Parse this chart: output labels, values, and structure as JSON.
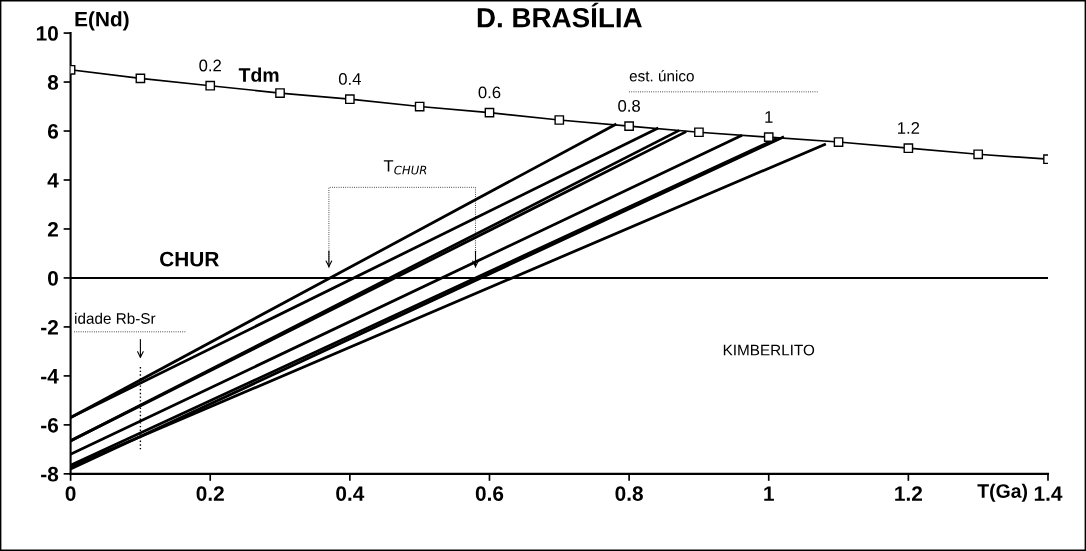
{
  "chart_data": {
    "type": "line",
    "title": "D. BRASÍLIA",
    "xlabel": "T(Ga)",
    "ylabel": "E(Nd)",
    "xlim": [
      0,
      1.4
    ],
    "ylim": [
      -8,
      10
    ],
    "xticks": [
      0,
      0.2,
      0.4,
      0.6,
      0.8,
      1,
      1.2,
      1.4
    ],
    "yticks": [
      -8,
      -6,
      -4,
      -2,
      0,
      2,
      4,
      6,
      8,
      10
    ],
    "series": [
      {
        "name": "Tdm",
        "color": "#000000",
        "marker": "square",
        "x": [
          0,
          0.1,
          0.2,
          0.3,
          0.4,
          0.5,
          0.6,
          0.7,
          0.8,
          0.9,
          1.0,
          1.1,
          1.2,
          1.3,
          1.4
        ],
        "values": [
          8.5,
          8.15,
          7.85,
          7.55,
          7.3,
          7.0,
          6.75,
          6.45,
          6.2,
          5.95,
          5.75,
          5.55,
          5.3,
          5.05,
          4.85
        ]
      },
      {
        "color": "#000000",
        "x": [
          0,
          0.78
        ],
        "values": [
          -5.7,
          6.26
        ]
      },
      {
        "color": "#000000",
        "x": [
          0,
          0.84
        ],
        "values": [
          -5.7,
          6.1
        ]
      },
      {
        "color": "#000000",
        "x": [
          0,
          0.87
        ],
        "values": [
          -6.65,
          6.0
        ]
      },
      {
        "color": "#000000",
        "x": [
          0,
          0.88
        ],
        "values": [
          -6.65,
          5.95
        ]
      },
      {
        "color": "#000000",
        "x": [
          0,
          0.96
        ],
        "values": [
          -7.2,
          5.8
        ]
      },
      {
        "color": "#000000",
        "x": [
          0,
          1.01
        ],
        "values": [
          -7.65,
          5.67
        ]
      },
      {
        "color": "#000000",
        "x": [
          0,
          1.02
        ],
        "values": [
          -7.8,
          5.74
        ]
      },
      {
        "color": "#000000",
        "x": [
          0,
          1.08
        ],
        "values": [
          -7.7,
          5.45
        ]
      }
    ],
    "ref_lines": [
      {
        "axis": "y",
        "value": 0,
        "label": "CHUR",
        "color": "#000000"
      },
      {
        "axis": "x",
        "value": 0.1,
        "label": "idade Rb-Sr",
        "color": "#000000",
        "line_style": "dotted"
      }
    ],
    "annotations": [
      {
        "text": "0.2",
        "x": 0.2,
        "y": 7.85
      },
      {
        "text": "0.4",
        "x": 0.4,
        "y": 7.3
      },
      {
        "text": "0.6",
        "x": 0.6,
        "y": 6.75
      },
      {
        "text": "0.8",
        "x": 0.8,
        "y": 6.2
      },
      {
        "text": "1",
        "x": 1.0,
        "y": 5.75
      },
      {
        "text": "1.2",
        "x": 1.2,
        "y": 5.3
      },
      "est. único",
      "T$_{CHUR}$",
      "KIMBERLITO"
    ]
  }
}
